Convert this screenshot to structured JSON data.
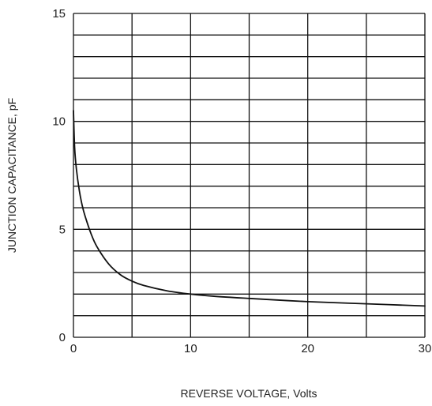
{
  "chart_data": {
    "type": "line",
    "title": "",
    "xlabel": "REVERSE VOLTAGE, Volts",
    "ylabel": "JUNCTION CAPACITANCE, pF",
    "xlim": [
      0,
      30
    ],
    "ylim": [
      0,
      15
    ],
    "x_ticks": [
      0,
      10,
      20,
      30
    ],
    "y_ticks": [
      0,
      5,
      10,
      15
    ],
    "grid": true,
    "x_grid_step": 5,
    "y_grid_step": 1,
    "series": [
      {
        "x": [
          0,
          0.1,
          0.25,
          0.5,
          0.75,
          1,
          1.5,
          2,
          3,
          4,
          5,
          6,
          8,
          10,
          12,
          15,
          20,
          25,
          30
        ],
        "y": [
          10.5,
          8.8,
          7.8,
          6.8,
          6.1,
          5.6,
          4.8,
          4.2,
          3.4,
          2.9,
          2.6,
          2.4,
          2.15,
          2.0,
          1.9,
          1.8,
          1.65,
          1.55,
          1.45
        ]
      }
    ],
    "colors": {
      "line": "#111111",
      "grid": "#111111",
      "text": "#222222"
    }
  }
}
